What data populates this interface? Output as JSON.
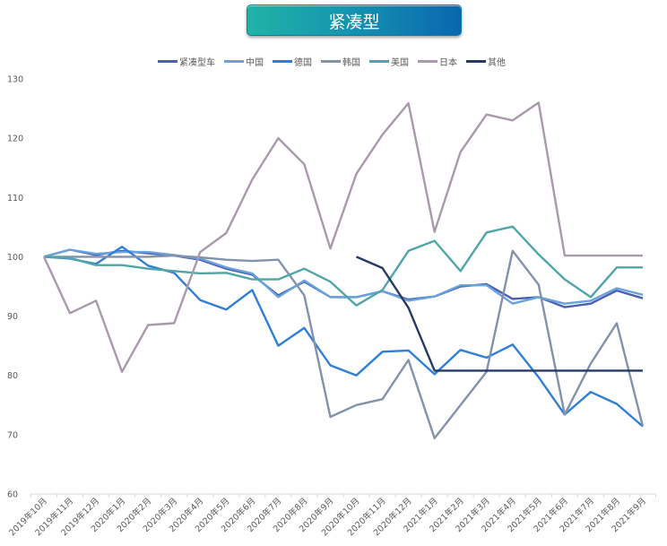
{
  "header": {
    "title": "紧凑型"
  },
  "chart_data": {
    "type": "line",
    "title": "紧凑型",
    "xlabel": "",
    "ylabel": "",
    "ylim": [
      60,
      130
    ],
    "yticks": [
      60,
      70,
      80,
      90,
      100,
      110,
      120,
      130
    ],
    "grid": false,
    "legend_position": "top",
    "categories": [
      "2019年10月",
      "2019年11月",
      "2019年12月",
      "2020年1月",
      "2020年2月",
      "2020年3月",
      "2020年4月",
      "2020年5月",
      "2020年6月",
      "2020年7月",
      "2020年8月",
      "2020年9月",
      "2020年10月",
      "2020年11月",
      "2020年12月",
      "2021年1月",
      "2021年2月",
      "2021年3月",
      "2021年4月",
      "2021年5月",
      "2021年6月",
      "2021年7月",
      "2021年8月",
      "2021年9月"
    ],
    "series": [
      {
        "name": "紧凑型车",
        "color": "#4a5fb5",
        "values": [
          100,
          101.2,
          100.3,
          101,
          100.6,
          100.2,
          99.5,
          98,
          97,
          93.5,
          95.8,
          93.2,
          93.2,
          94.2,
          92.8,
          93.3,
          95,
          95.4,
          92.9,
          93.2,
          91.5,
          92.1,
          94.3,
          93.0
        ]
      },
      {
        "name": "中国",
        "color": "#6aa2dc",
        "values": [
          100,
          101.2,
          100.5,
          100.8,
          100.8,
          100.3,
          99.7,
          98.2,
          97.2,
          93.2,
          96,
          93.2,
          93.2,
          94.2,
          92.6,
          93.3,
          95.2,
          95.2,
          92.1,
          93.2,
          92.1,
          92.6,
          94.7,
          93.6
        ]
      },
      {
        "name": "德国",
        "color": "#2f7fd8",
        "values": [
          100,
          99.7,
          98.8,
          101.7,
          98.5,
          97.3,
          92.7,
          91.1,
          94.4,
          85,
          88,
          81.7,
          80,
          84,
          84.2,
          80.2,
          84.3,
          83,
          85.2,
          79.7,
          73.4,
          77.2,
          75.2,
          71.4
        ]
      },
      {
        "name": "韩国",
        "color": "#8391ab",
        "values": [
          100,
          100,
          100,
          100,
          100,
          100.2,
          99.9,
          99.5,
          99.3,
          99.5,
          93.5,
          73,
          75,
          76,
          82.6,
          69.4,
          75,
          80.6,
          101,
          95.3,
          73.4,
          82,
          88.8,
          71.4
        ]
      },
      {
        "name": "美国",
        "color": "#4fa5a8",
        "values": [
          100,
          99.8,
          98.6,
          98.6,
          98,
          97.6,
          97.2,
          97.3,
          96.2,
          96.2,
          98,
          95.8,
          91.8,
          94.4,
          101,
          102.7,
          97.6,
          104.1,
          105.1,
          100.4,
          96.2,
          93.2,
          98.2,
          98.2
        ]
      },
      {
        "name": "日本",
        "color": "#a89aaa",
        "values": [
          100,
          90.5,
          92.6,
          80.6,
          88.5,
          88.8,
          100.8,
          104,
          113,
          120,
          115.6,
          101.4,
          114,
          120.6,
          125.9,
          104.2,
          117.7,
          124,
          123,
          126,
          100.2,
          100.2,
          100.2,
          100.2
        ]
      },
      {
        "name": "其他",
        "color": "#263a66",
        "values": [
          null,
          null,
          null,
          null,
          null,
          null,
          null,
          null,
          null,
          null,
          null,
          null,
          100,
          98.1,
          91.4,
          80.8,
          80.8,
          80.8,
          80.8,
          80.8,
          80.8,
          80.8,
          80.8,
          80.8
        ]
      }
    ]
  }
}
